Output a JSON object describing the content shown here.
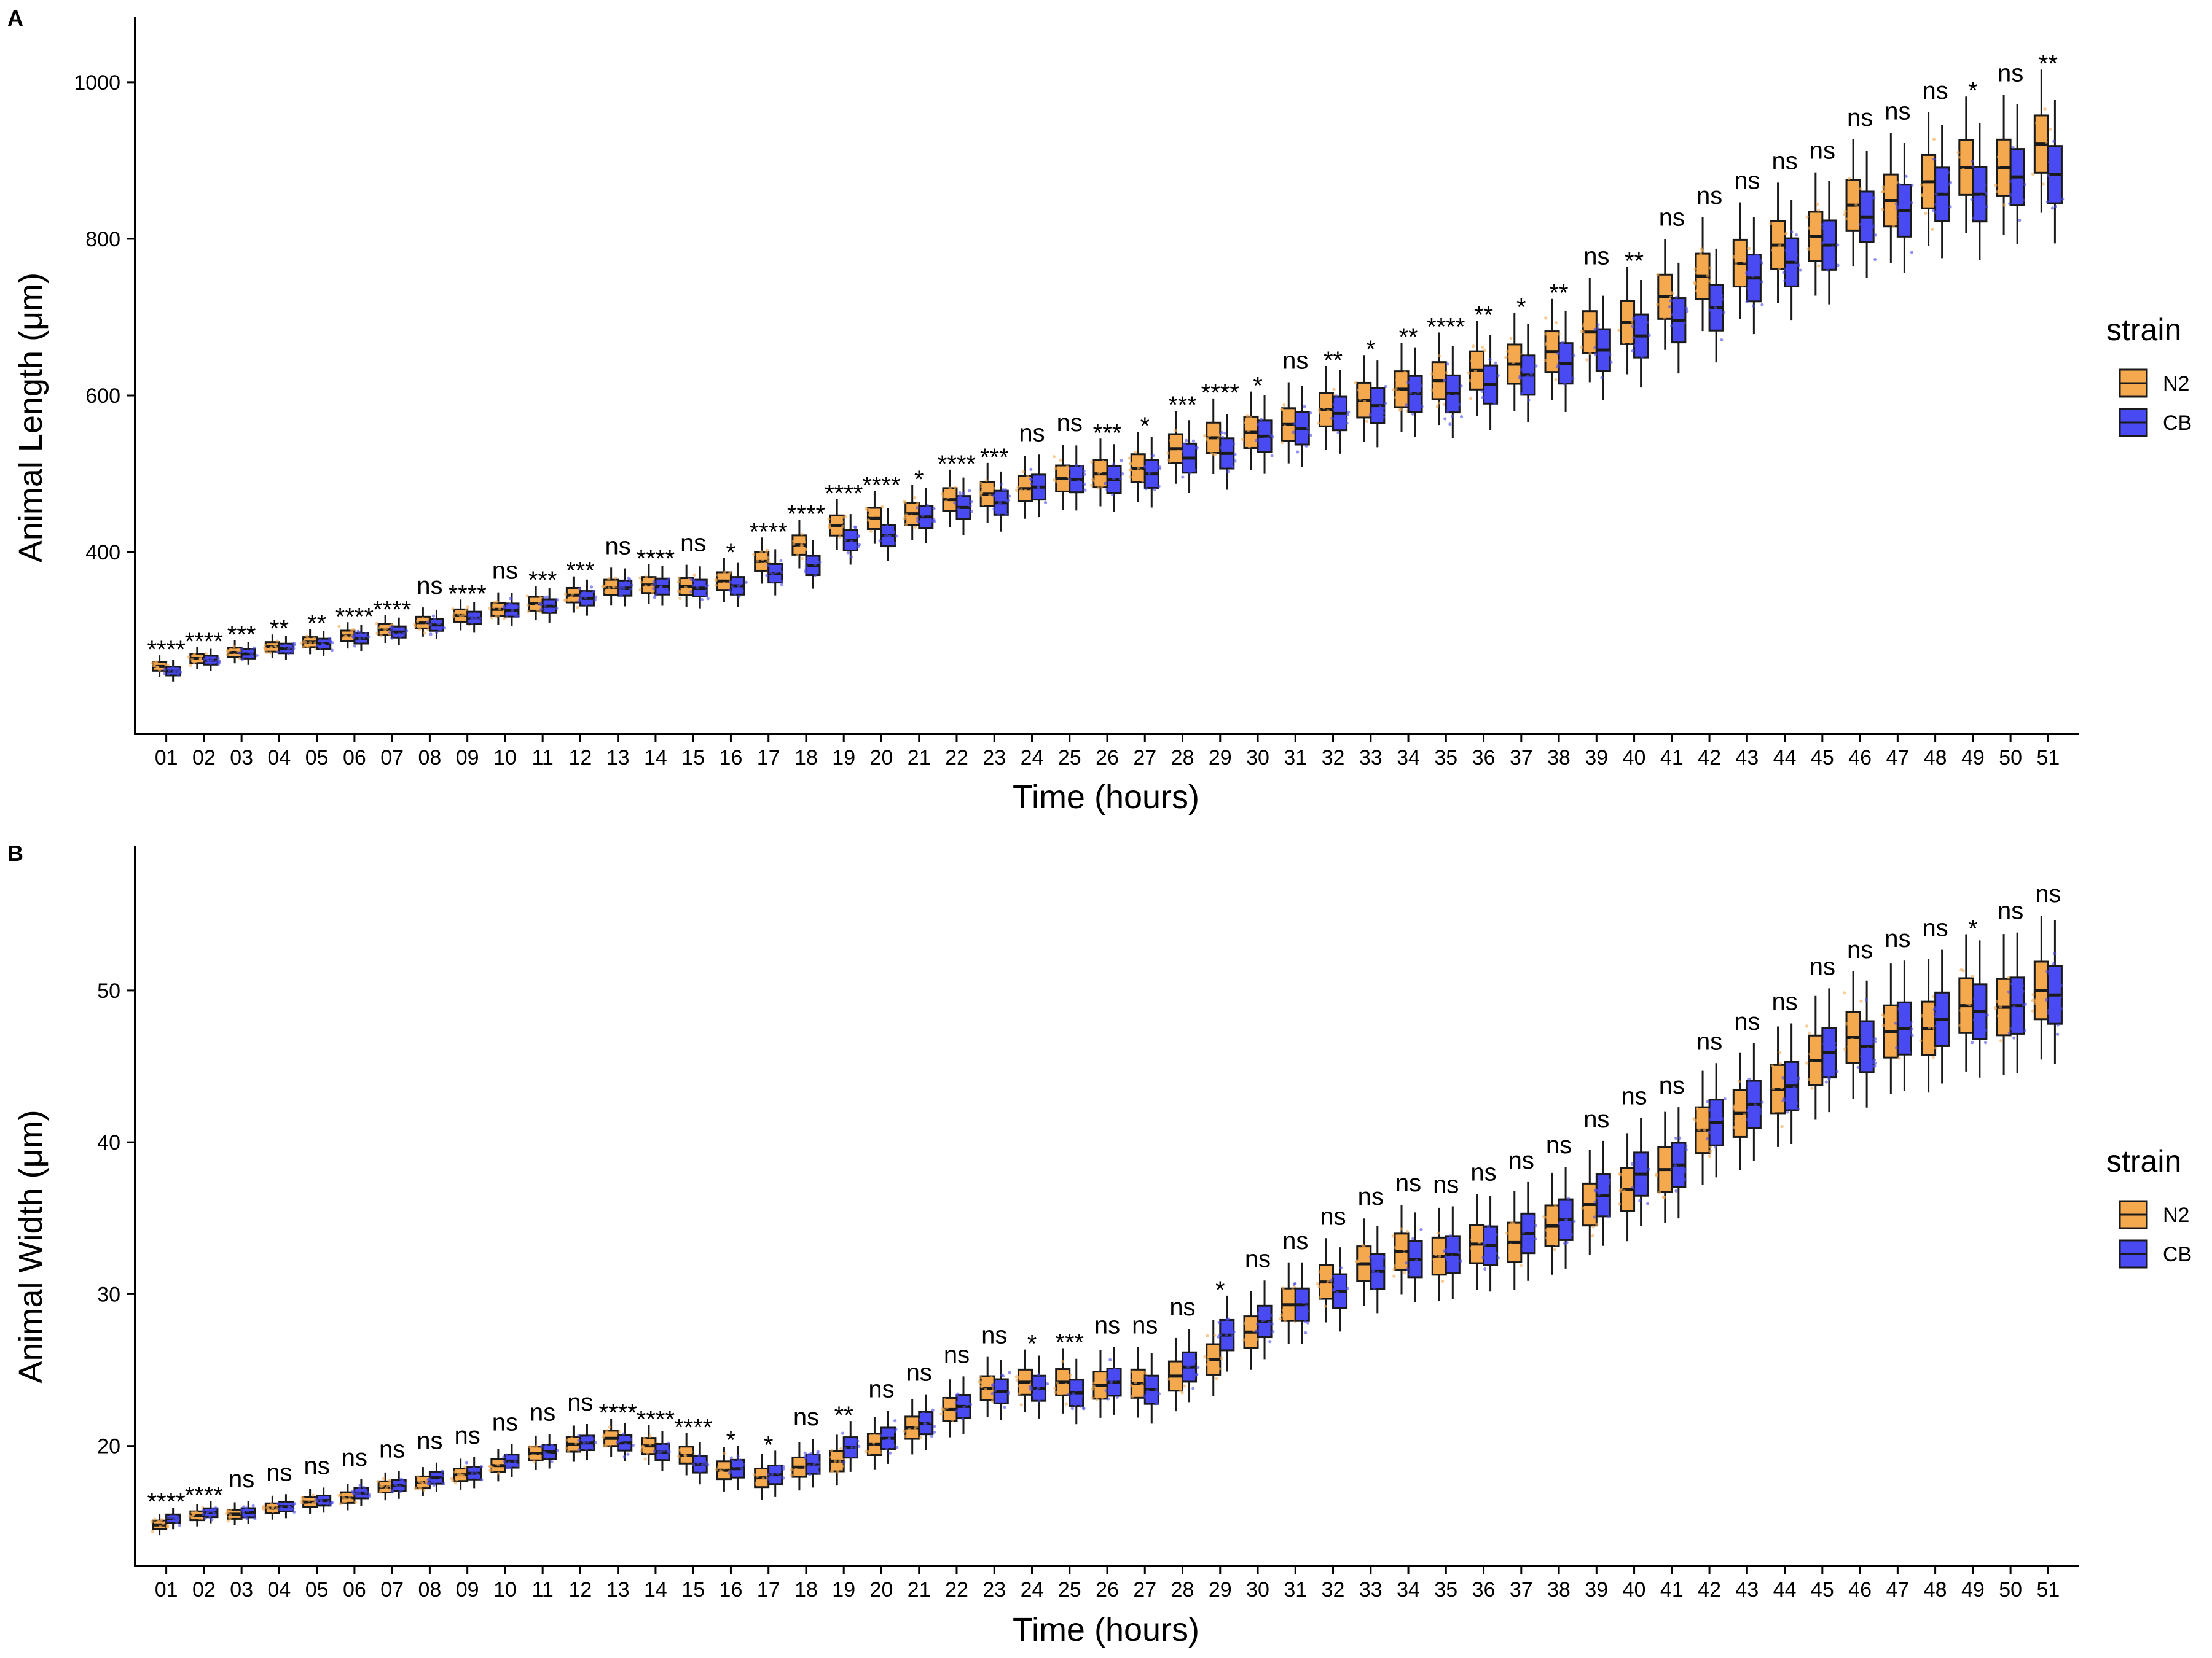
{
  "figure": {
    "panels": [
      "A",
      "B"
    ],
    "legend_title": "strain",
    "legend_items": [
      "N2",
      "CB"
    ]
  },
  "colors": {
    "N2": "#F5A94E",
    "CB": "#4A4AF2",
    "box_edge": "#1a1a1a"
  },
  "chart_data": [
    {
      "type": "box",
      "panel": "A",
      "xlabel": "Time (hours)",
      "ylabel": "Animal Length (μm)",
      "ylim": [
        168,
        1083
      ],
      "yticks": [
        400,
        600,
        800,
        1000
      ],
      "categories": [
        "01",
        "02",
        "03",
        "04",
        "05",
        "06",
        "07",
        "08",
        "09",
        "10",
        "11",
        "12",
        "13",
        "14",
        "15",
        "16",
        "17",
        "18",
        "19",
        "20",
        "21",
        "22",
        "23",
        "24",
        "25",
        "26",
        "27",
        "28",
        "29",
        "30",
        "31",
        "32",
        "33",
        "34",
        "35",
        "36",
        "37",
        "38",
        "39",
        "40",
        "41",
        "42",
        "43",
        "44",
        "45",
        "46",
        "47",
        "48",
        "49",
        "50",
        "51"
      ],
      "legend": {
        "title": "strain",
        "entries": [
          "N2",
          "CB"
        ],
        "position": "right"
      },
      "series": [
        {
          "name": "N2",
          "medians": [
            254,
            264,
            272,
            279,
            285,
            293,
            301,
            310,
            319,
            327,
            334,
            345,
            355,
            358,
            356,
            363,
            388,
            409,
            434,
            443,
            449,
            467,
            474,
            481,
            494,
            500,
            507,
            532,
            546,
            553,
            563,
            582,
            594,
            608,
            619,
            632,
            640,
            656,
            681,
            693,
            726,
            752,
            769,
            792,
            803,
            843,
            849,
            873,
            891,
            891,
            921
          ]
        },
        {
          "name": "CB",
          "medians": [
            248,
            262,
            270,
            277,
            283,
            290,
            298,
            307,
            316,
            326,
            331,
            341,
            354,
            356,
            354,
            357,
            373,
            383,
            415,
            421,
            445,
            457,
            463,
            483,
            493,
            493,
            500,
            520,
            526,
            548,
            558,
            577,
            587,
            602,
            602,
            614,
            626,
            641,
            658,
            676,
            696,
            712,
            750,
            770,
            792,
            828,
            836,
            857,
            857,
            879,
            882
          ]
        }
      ],
      "significance": [
        "****",
        "****",
        "***",
        "**",
        "**",
        "****",
        "****",
        "ns",
        "****",
        "ns",
        "***",
        "***",
        "ns",
        "****",
        "ns",
        "*",
        "****",
        "****",
        "****",
        "****",
        "*",
        "****",
        "***",
        "ns",
        "ns",
        "***",
        "*",
        "***",
        "****",
        "*",
        "ns",
        "**",
        "*",
        "**",
        "****",
        "**",
        "*",
        "**",
        "ns",
        "**",
        "ns",
        "ns",
        "ns",
        "ns",
        "ns",
        "ns",
        "ns",
        "ns",
        "*",
        "ns",
        "**"
      ]
    },
    {
      "type": "box",
      "panel": "B",
      "xlabel": "Time (hours)",
      "ylabel": "Animal Width (μm)",
      "ylim": [
        12.1,
        59.5
      ],
      "yticks": [
        20,
        30,
        40,
        50
      ],
      "categories": [
        "01",
        "02",
        "03",
        "04",
        "05",
        "06",
        "07",
        "08",
        "09",
        "10",
        "11",
        "12",
        "13",
        "14",
        "15",
        "16",
        "17",
        "18",
        "19",
        "20",
        "21",
        "22",
        "23",
        "24",
        "25",
        "26",
        "27",
        "28",
        "29",
        "30",
        "31",
        "32",
        "33",
        "34",
        "35",
        "36",
        "37",
        "38",
        "39",
        "40",
        "41",
        "42",
        "43",
        "44",
        "45",
        "46",
        "47",
        "48",
        "49",
        "50",
        "51"
      ],
      "legend": {
        "title": "strain",
        "entries": [
          "N2",
          "CB"
        ],
        "position": "right"
      },
      "series": [
        {
          "name": "N2",
          "medians": [
            14.8,
            15.4,
            15.5,
            15.9,
            16.3,
            16.6,
            17.3,
            17.6,
            18.1,
            18.7,
            19.5,
            20.1,
            20.5,
            20.0,
            19.4,
            18.4,
            17.9,
            18.6,
            19.0,
            20.1,
            21.2,
            22.4,
            23.8,
            24.2,
            24.2,
            24.0,
            24.1,
            24.6,
            25.7,
            27.5,
            29.3,
            30.8,
            32.0,
            32.8,
            32.5,
            33.3,
            33.4,
            34.5,
            35.9,
            36.9,
            38.2,
            40.8,
            41.9,
            43.5,
            45.4,
            46.9,
            47.3,
            47.5,
            49.0,
            48.9,
            50.0
          ]
        },
        {
          "name": "CB",
          "medians": [
            15.2,
            15.6,
            15.6,
            16.0,
            16.4,
            16.9,
            17.4,
            17.9,
            18.2,
            19.0,
            19.6,
            20.2,
            20.2,
            19.6,
            18.8,
            18.5,
            18.1,
            18.8,
            19.9,
            20.5,
            21.5,
            22.6,
            23.6,
            23.8,
            23.5,
            24.2,
            23.7,
            25.2,
            27.3,
            28.2,
            29.3,
            30.2,
            31.5,
            32.3,
            32.6,
            33.2,
            34.0,
            34.9,
            36.5,
            37.9,
            38.5,
            41.3,
            42.5,
            43.7,
            45.9,
            46.3,
            47.5,
            48.1,
            48.6,
            49.0,
            49.7
          ]
        }
      ],
      "significance": [
        "****",
        "****",
        "ns",
        "ns",
        "ns",
        "ns",
        "ns",
        "ns",
        "ns",
        "ns",
        "ns",
        "ns",
        "****",
        "****",
        "****",
        "*",
        "*",
        "ns",
        "**",
        "ns",
        "ns",
        "ns",
        "ns",
        "*",
        "***",
        "ns",
        "ns",
        "ns",
        "*",
        "ns",
        "ns",
        "ns",
        "ns",
        "ns",
        "ns",
        "ns",
        "ns",
        "ns",
        "ns",
        "ns",
        "ns",
        "ns",
        "ns",
        "ns",
        "ns",
        "ns",
        "ns",
        "ns",
        "*",
        "ns",
        "ns"
      ]
    }
  ]
}
